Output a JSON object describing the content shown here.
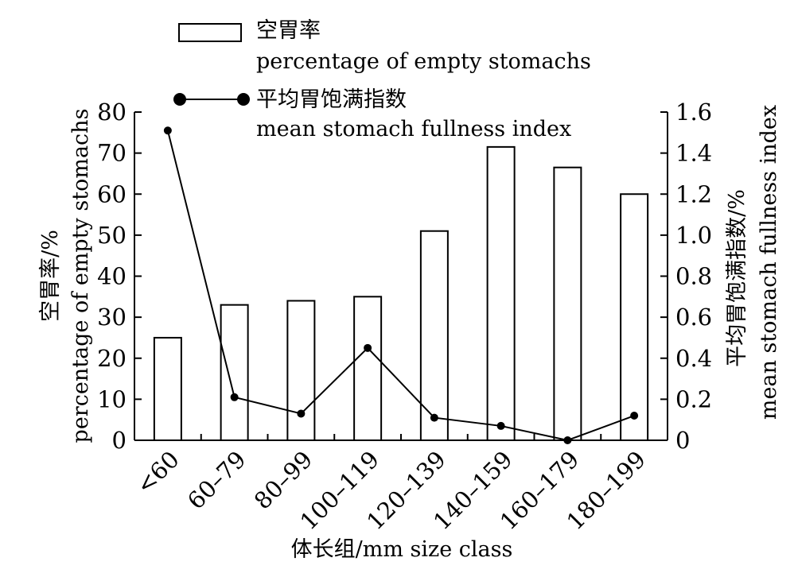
{
  "chart_data": {
    "type": "bar",
    "categories": [
      "<60",
      "60–79",
      "80–99",
      "100–119",
      "120–139",
      "140–159",
      "160–179",
      "180–199"
    ],
    "series": [
      {
        "name": "空胃率 percentage of empty stomachs",
        "type": "bar",
        "axis": "left",
        "values": [
          25.0,
          33.0,
          34.0,
          35.0,
          51.0,
          71.5,
          66.5,
          60.0
        ]
      },
      {
        "name": "平均胃饱满指数 mean stomach fullness index",
        "type": "line",
        "axis": "right",
        "values": [
          1.51,
          0.21,
          0.13,
          0.45,
          0.11,
          0.07,
          0.0,
          0.12
        ]
      }
    ],
    "xlabel": "体长组/mm size class",
    "ylabel_left_line1": "空胃率/%",
    "ylabel_left_line2": "percentage of empty stomachs",
    "ylabel_right_line1": "平均胃饱满指数/%",
    "ylabel_right_line2": "mean stomach fullness index",
    "ylim_left": [
      0,
      80
    ],
    "ylim_right": [
      0,
      1.6
    ],
    "yticks_left": [
      "0",
      "10",
      "20",
      "30",
      "40",
      "50",
      "60",
      "70",
      "80"
    ],
    "yticks_right": [
      "0",
      "0.2",
      "0.4",
      "0.6",
      "0.8",
      "1.0",
      "1.2",
      "1.4",
      "1.6"
    ],
    "grid": false,
    "legend": {
      "placement": "top-left",
      "entries": [
        {
          "line1": "空胃率",
          "line2": "percentage of empty stomachs",
          "marker": "bar"
        },
        {
          "line1": "平均胃饱满指数",
          "line2": "mean stomach fullness index",
          "marker": "line-dot"
        }
      ]
    }
  }
}
